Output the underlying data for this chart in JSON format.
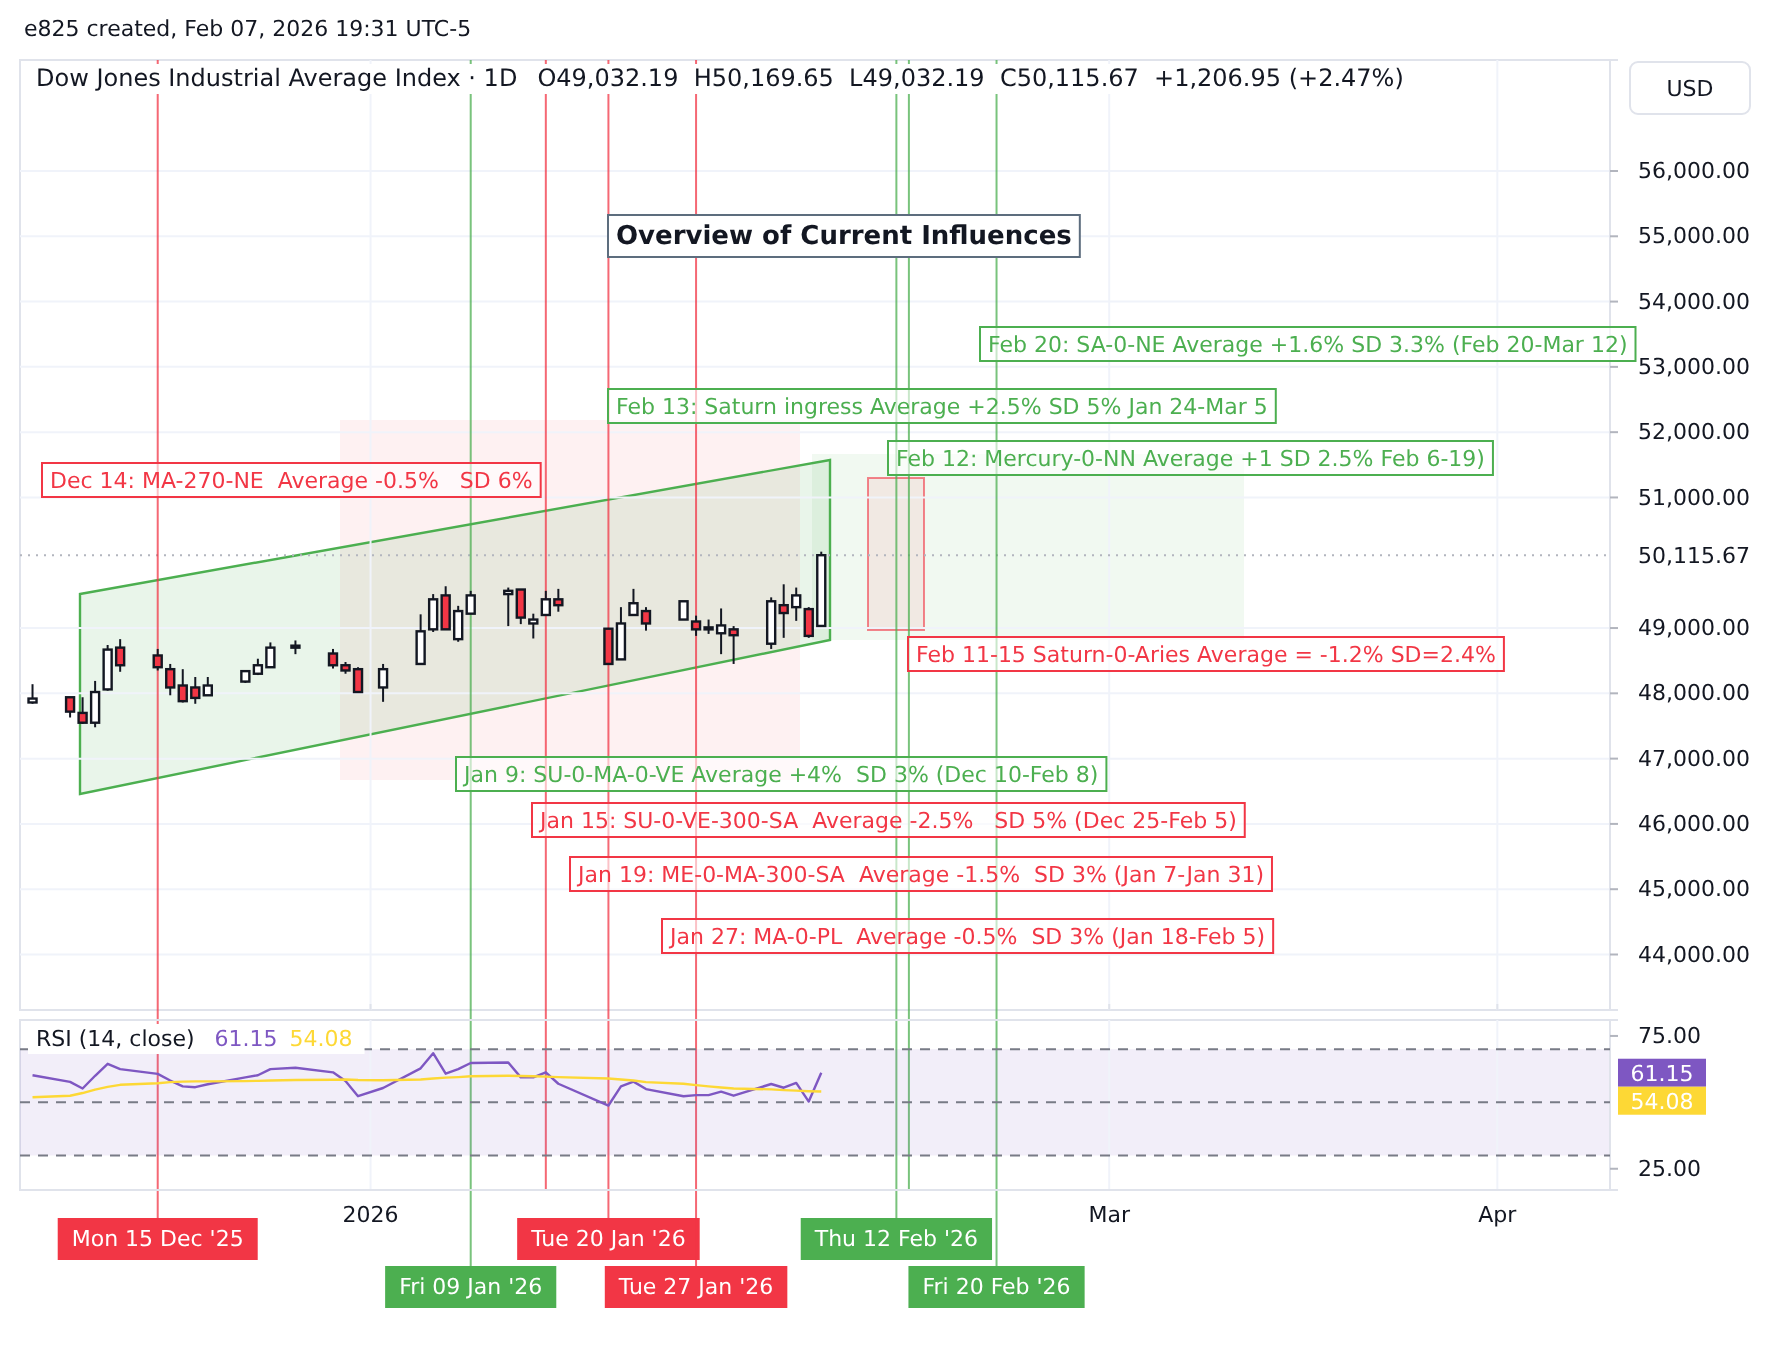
{
  "chart_data": [
    {
      "type": "candlestick",
      "title": "Dow Jones Industrial Average Index · 1D",
      "subtitle": "O49,032.19  H50,169.65  L49,032.19  C50,115.67  +1,206.95 (+2.47%)",
      "ylabel": "USD",
      "x": [
        "2025-12-05",
        "2025-12-08",
        "2025-12-09",
        "2025-12-10",
        "2025-12-11",
        "2025-12-12",
        "2025-12-15",
        "2025-12-16",
        "2025-12-17",
        "2025-12-18",
        "2025-12-19",
        "2025-12-22",
        "2025-12-23",
        "2025-12-24",
        "2025-12-26",
        "2025-12-29",
        "2025-12-30",
        "2025-12-31",
        "2026-01-02",
        "2026-01-05",
        "2026-01-06",
        "2026-01-07",
        "2026-01-08",
        "2026-01-09",
        "2026-01-12",
        "2026-01-13",
        "2026-01-14",
        "2026-01-15",
        "2026-01-16",
        "2026-01-20",
        "2026-01-21",
        "2026-01-22",
        "2026-01-23",
        "2026-01-26",
        "2026-01-27",
        "2026-01-28",
        "2026-01-29",
        "2026-01-30",
        "2026-02-02",
        "2026-02-03",
        "2026-02-04",
        "2026-02-05",
        "2026-02-06"
      ],
      "ohlc": [
        [
          47860,
          48140,
          47840,
          47920
        ],
        [
          47940,
          47940,
          47630,
          47720
        ],
        [
          47700,
          47940,
          47530,
          47550
        ],
        [
          47550,
          48190,
          47480,
          48020
        ],
        [
          48060,
          48740,
          48040,
          48670
        ],
        [
          48700,
          48830,
          48330,
          48430
        ],
        [
          48580,
          48680,
          48350,
          48400
        ],
        [
          48370,
          48450,
          47970,
          48090
        ],
        [
          48120,
          48370,
          47860,
          47880
        ],
        [
          48090,
          48250,
          47840,
          47930
        ],
        [
          47970,
          48250,
          47970,
          48120
        ],
        [
          48180,
          48340,
          48160,
          48340
        ],
        [
          48300,
          48530,
          48280,
          48430
        ],
        [
          48400,
          48780,
          48400,
          48700
        ],
        [
          48730,
          48810,
          48600,
          48700
        ],
        [
          48610,
          48680,
          48380,
          48430
        ],
        [
          48430,
          48480,
          48300,
          48350
        ],
        [
          48370,
          48400,
          48010,
          48020
        ],
        [
          48090,
          48450,
          47870,
          48370
        ],
        [
          48450,
          49210,
          48450,
          48950
        ],
        [
          48980,
          49520,
          48940,
          49440
        ],
        [
          49500,
          49640,
          48980,
          48980
        ],
        [
          48830,
          49340,
          48790,
          49260
        ],
        [
          49220,
          49570,
          49220,
          49500
        ],
        [
          49520,
          49620,
          49030,
          49570
        ],
        [
          49590,
          49590,
          49060,
          49160
        ],
        [
          49070,
          49220,
          48840,
          49130
        ],
        [
          49200,
          49570,
          49200,
          49440
        ],
        [
          49440,
          49600,
          49250,
          49350
        ],
        [
          48990,
          49000,
          48450,
          48450
        ],
        [
          48520,
          49320,
          48520,
          49070
        ],
        [
          49200,
          49600,
          49200,
          49380
        ],
        [
          49260,
          49320,
          48960,
          49070
        ],
        [
          49130,
          49410,
          49130,
          49410
        ],
        [
          49100,
          49190,
          48880,
          48980
        ],
        [
          49010,
          49130,
          48910,
          49000
        ],
        [
          48920,
          49300,
          48600,
          49040
        ],
        [
          48980,
          49030,
          48450,
          48890
        ],
        [
          48760,
          49470,
          48680,
          49410
        ],
        [
          49350,
          49670,
          48850,
          49230
        ],
        [
          49320,
          49620,
          49110,
          49500
        ],
        [
          49290,
          49320,
          48850,
          48880
        ],
        [
          49032.19,
          50169.65,
          49032.19,
          50115.67
        ]
      ],
      "colors": [
        "#ffffff",
        "#f23645",
        "#f23645",
        "#ffffff",
        "#ffffff",
        "#f23645",
        "#f23645",
        "#f23645",
        "#f23645",
        "#f23645",
        "#ffffff",
        "#ffffff",
        "#ffffff",
        "#ffffff",
        "#f23645",
        "#f23645",
        "#f23645",
        "#f23645",
        "#ffffff",
        "#ffffff",
        "#ffffff",
        "#f23645",
        "#ffffff",
        "#ffffff",
        "#ffffff",
        "#f23645",
        "#ffffff",
        "#ffffff",
        "#f23645",
        "#f23645",
        "#ffffff",
        "#ffffff",
        "#f23645",
        "#ffffff",
        "#f23645",
        "#f23645",
        "#ffffff",
        "#f23645",
        "#ffffff",
        "#f23645",
        "#ffffff",
        "#f23645",
        "#ffffff"
      ],
      "xlim": [
        "2025-12-04",
        "2026-04-10"
      ],
      "xticks": [
        {
          "value": "2026-01-01",
          "label": null
        },
        {
          "value": "2026-03-01",
          "label": null
        },
        {
          "value": "2026-04-01",
          "label": null
        }
      ],
      "ylim": [
        43150,
        57700
      ],
      "yticks": [
        {
          "value": 44000,
          "label": "44,000.00"
        },
        {
          "value": 45000,
          "label": "45,000.00"
        },
        {
          "value": 46000,
          "label": "46,000.00"
        },
        {
          "value": 47000,
          "label": "47,000.00"
        },
        {
          "value": 48000,
          "label": "48,000.00"
        },
        {
          "value": 49000,
          "label": "49,000.00"
        },
        {
          "value": 51000,
          "label": "51,000.00"
        },
        {
          "value": 52000,
          "label": "52,000.00"
        },
        {
          "value": 53000,
          "label": "53,000.00"
        },
        {
          "value": 54000,
          "label": "54,000.00"
        },
        {
          "value": 55000,
          "label": "55,000.00"
        },
        {
          "value": 56000,
          "label": "56,000.00"
        }
      ],
      "tick_labels": "y",
      "grid": true,
      "ref_lines": [
        {
          "axis": "y",
          "value": 50115.67,
          "label": "50,115.67",
          "color": "#b2b5be",
          "line_style": "dotted"
        },
        {
          "axis": "x",
          "value": "2025-12-15",
          "label": "Mon 15 Dec '25",
          "color": "#f23645"
        },
        {
          "axis": "x",
          "value": "2026-01-09",
          "label": "Fri 09 Jan '26",
          "color": "#4caf50"
        },
        {
          "axis": "x",
          "value": "2026-01-15",
          "label": null,
          "color": "#f23645"
        },
        {
          "axis": "x",
          "value": "2026-01-20",
          "label": "Tue 20 Jan '26",
          "color": "#f23645"
        },
        {
          "axis": "x",
          "value": "2026-01-27",
          "label": "Tue 27 Jan '26",
          "color": "#f23645"
        },
        {
          "axis": "x",
          "value": "2026-02-12",
          "label": "Thu 12 Feb '26",
          "color": "#4caf50"
        },
        {
          "axis": "x",
          "value": "2026-02-13",
          "label": null,
          "color": "#4caf50"
        },
        {
          "axis": "x",
          "value": "2026-02-20",
          "label": "Fri 20 Feb '26",
          "color": "#4caf50"
        }
      ],
      "annotations": [
        "e825 created, Feb 07, 2026 19:31 UTC-5",
        "Overview of Current Influences",
        "Feb 20: SA-0-NE Average +1.6% SD 3.3% (Feb 20-Mar 12)",
        "Feb 13: Saturn ingress Average +2.5% SD 5% Jan 24-Mar 5",
        "Dec 14: MA-270-NE  Average -0.5%   SD 6%",
        "Feb 12: Mercury-0-NN Average +1 SD 2.5% Feb 6-19)",
        "Feb 11-15 Saturn-0-Aries Average = -1.2% SD=2.4%",
        "Jan 9: SU-0-MA-0-VE Average +4%  SD 3% (Dec 10-Feb 8)",
        "Jan 15: SU-0-VE-300-SA  Average -2.5%   SD 5% (Dec 25-Feb 5)",
        "Jan 19: ME-0-MA-300-SA  Average -1.5%  SD 3% (Jan 7-Jan 31)",
        "Jan 27: MA-0-PL  Average -0.5%  SD 3% (Jan 18-Feb 5)"
      ]
    },
    {
      "type": "line",
      "title": "RSI (14, close)",
      "annotations": [
        "61.15",
        "54.08"
      ],
      "x": [
        "2025-12-05",
        "2025-12-08",
        "2025-12-09",
        "2025-12-10",
        "2025-12-11",
        "2025-12-12",
        "2025-12-15",
        "2025-12-16",
        "2025-12-17",
        "2025-12-18",
        "2025-12-19",
        "2025-12-22",
        "2025-12-23",
        "2025-12-24",
        "2025-12-26",
        "2025-12-29",
        "2025-12-30",
        "2025-12-31",
        "2026-01-02",
        "2026-01-05",
        "2026-01-06",
        "2026-01-07",
        "2026-01-08",
        "2026-01-09",
        "2026-01-12",
        "2026-01-13",
        "2026-01-14",
        "2026-01-15",
        "2026-01-16",
        "2026-01-20",
        "2026-01-21",
        "2026-01-22",
        "2026-01-23",
        "2026-01-26",
        "2026-01-27",
        "2026-01-28",
        "2026-01-29",
        "2026-01-30",
        "2026-02-02",
        "2026-02-03",
        "2026-02-04",
        "2026-02-05",
        "2026-02-06"
      ],
      "series": [
        {
          "color": "#7e57c2",
          "values": [
            60.2,
            57.7,
            55.2,
            60,
            64.5,
            62.5,
            60.7,
            58.2,
            56,
            55.7,
            56.8,
            59.4,
            60.2,
            62.5,
            63,
            61.3,
            58,
            52.3,
            55.4,
            62.8,
            68.5,
            60.8,
            62.5,
            64.8,
            65,
            59.4,
            59.4,
            61.3,
            57,
            48.8,
            56,
            57.8,
            55,
            52.3,
            52.7,
            52.7,
            54,
            52.5,
            56.9,
            55.5,
            57.3,
            50.3,
            61.15
          ]
        },
        {
          "color": "#fdd835",
          "values": [
            51.9,
            52.5,
            53.5,
            54.8,
            55.8,
            56.6,
            57.2,
            57.6,
            57.8,
            57.9,
            57.9,
            58,
            58.1,
            58.2,
            58.4,
            58.5,
            58.6,
            58.4,
            58.3,
            58.6,
            59,
            59.3,
            59.5,
            59.8,
            60,
            59.9,
            59.8,
            59.7,
            59.5,
            59,
            58.6,
            58.2,
            57.6,
            57,
            56.5,
            56,
            55.6,
            55.2,
            54.9,
            54.6,
            54.4,
            54.2,
            54.08
          ]
        }
      ],
      "xlim": [
        "2025-12-04",
        "2026-04-10"
      ],
      "xticks": [
        {
          "value": "2026-01-01",
          "label": "2026"
        },
        {
          "value": "2026-03-01",
          "label": "Mar"
        },
        {
          "value": "2026-04-01",
          "label": "Apr"
        }
      ],
      "ylim": [
        17,
        81
      ],
      "yticks": [
        {
          "value": 25,
          "label": "25.00"
        },
        {
          "value": 75,
          "label": "75.00"
        }
      ],
      "grid": "x",
      "ref_lines": [
        {
          "axis": "y",
          "value": 70,
          "label": null,
          "color": "#787b86",
          "line_style": "dashed"
        },
        {
          "axis": "y",
          "value": 50,
          "label": null,
          "color": "#787b86",
          "line_style": "dashed"
        },
        {
          "axis": "y",
          "value": 30,
          "label": null,
          "color": "#787b86",
          "line_style": "dashed"
        }
      ],
      "bands": [
        {
          "axis": "y",
          "from": 30,
          "to": 70,
          "label": null,
          "color": "#7e57c2"
        }
      ]
    }
  ]
}
